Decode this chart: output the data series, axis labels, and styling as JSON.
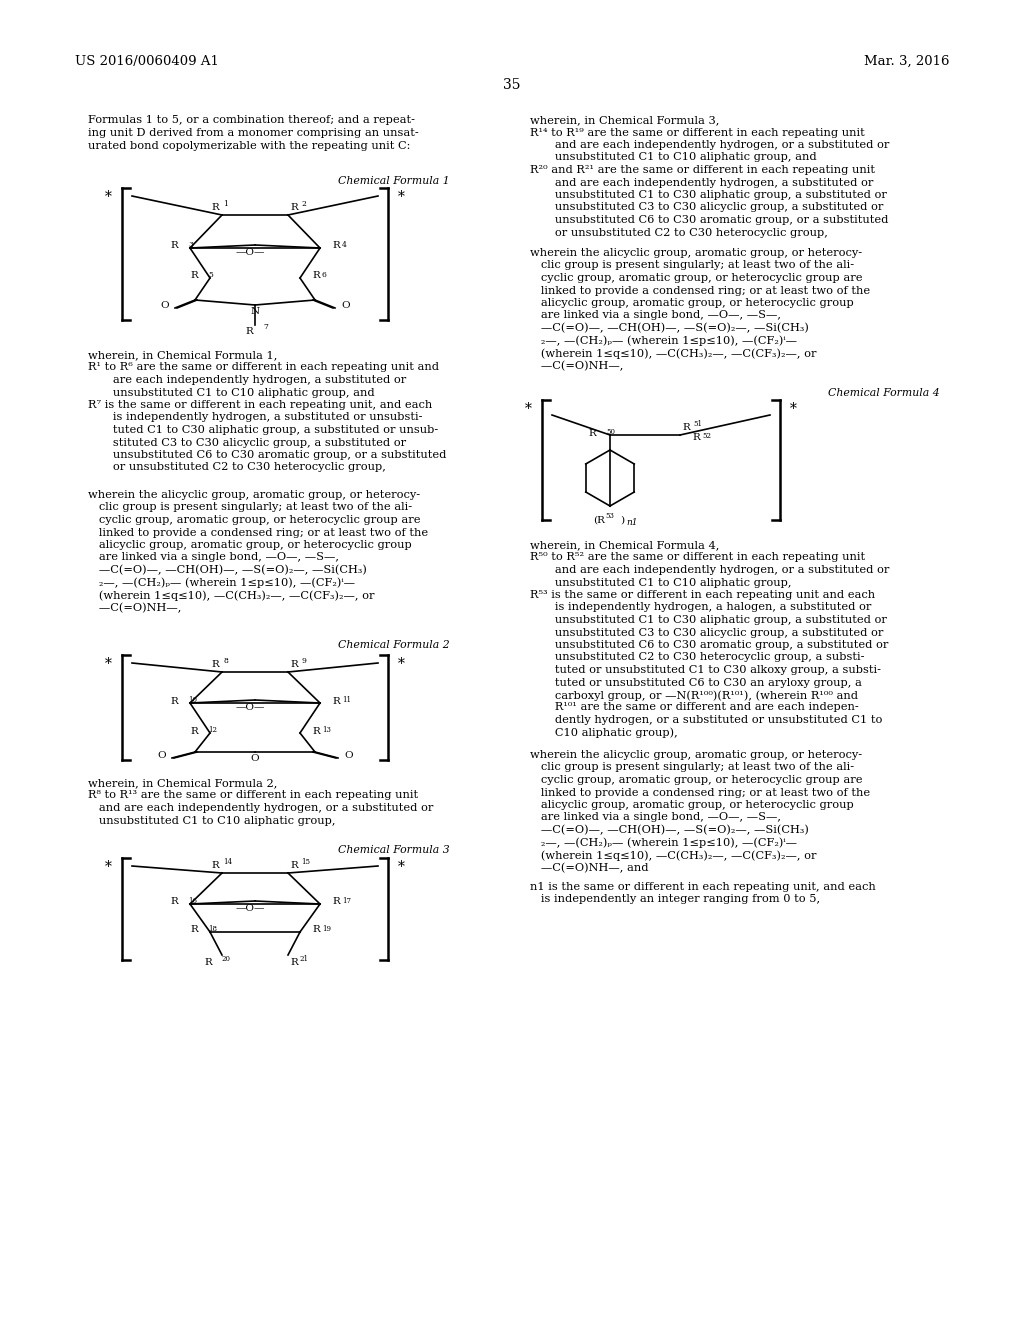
{
  "bg_color": "#ffffff",
  "header_left": "US 2016/0060409 A1",
  "header_right": "Mar. 3, 2016",
  "page_number": "35",
  "font_size_body": 8.2,
  "font_size_small": 7.5,
  "font_size_header": 9.5,
  "font_size_label": 7.8
}
